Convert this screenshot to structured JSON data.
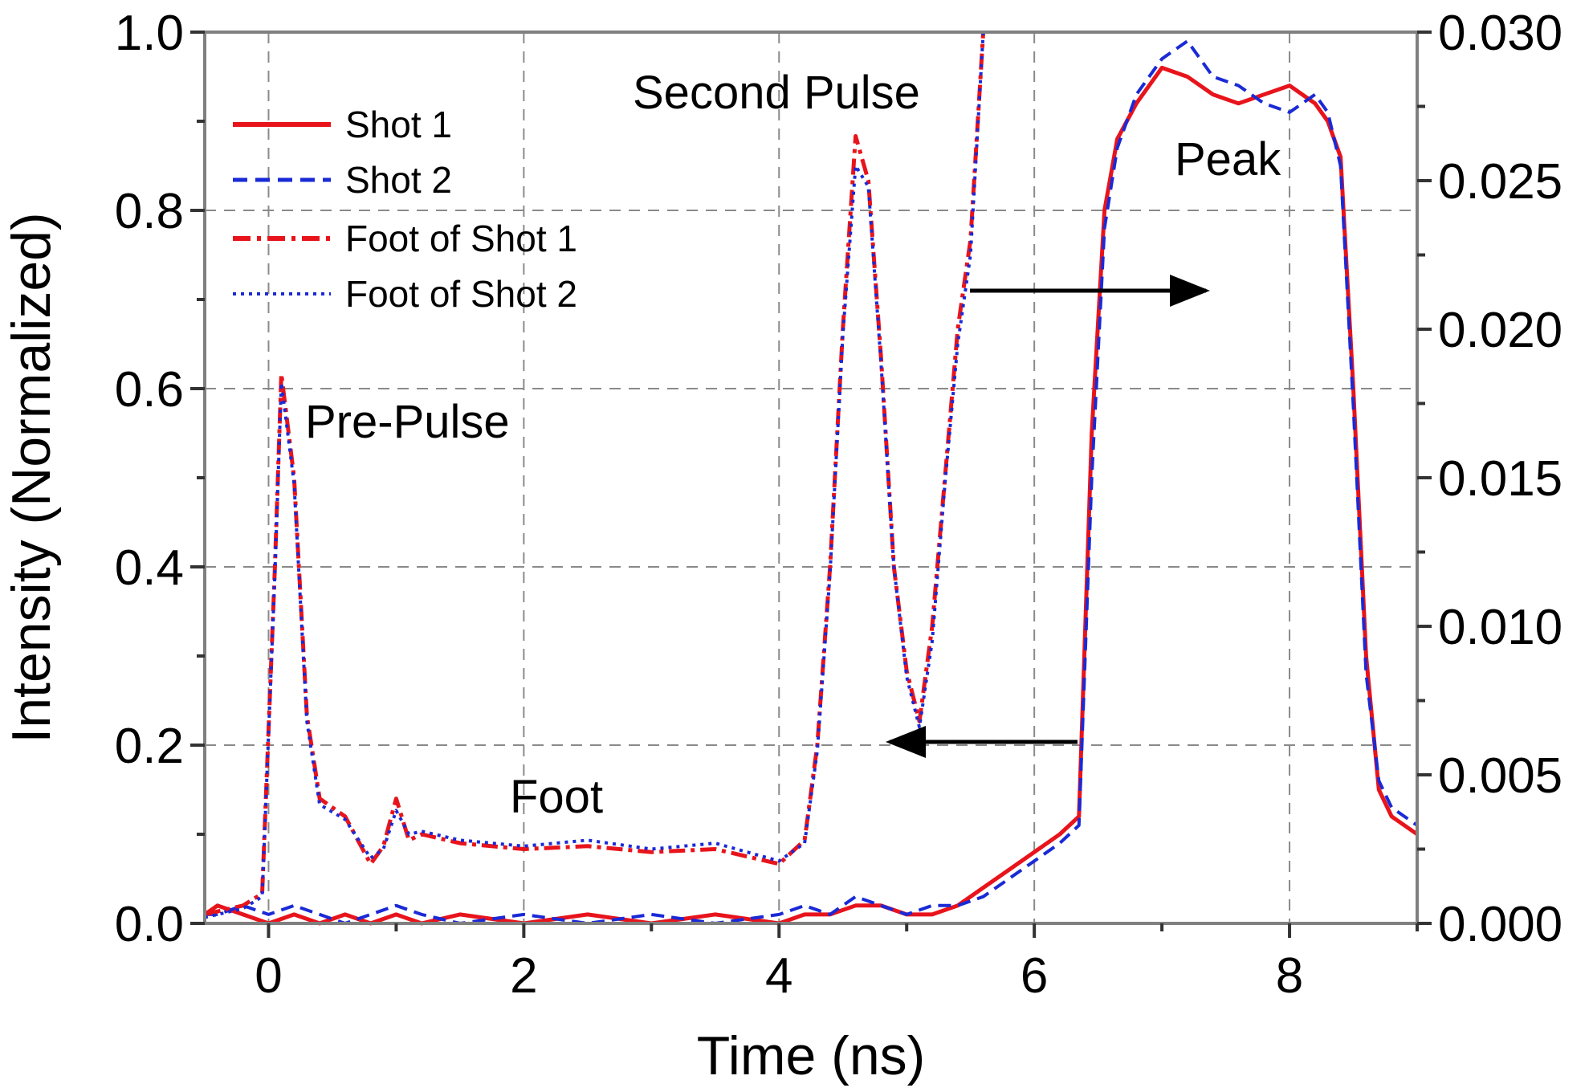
{
  "chart_data": {
    "type": "line",
    "xlabel": "Time (ns)",
    "ylabel": "Intensity (Normalized)",
    "xlim": [
      -0.5,
      9.0
    ],
    "ylim": [
      0.0,
      1.0
    ],
    "y2lim": [
      0.0,
      0.03
    ],
    "x_ticks": [
      0,
      2,
      4,
      6,
      8
    ],
    "y_ticks": [
      0.0,
      0.2,
      0.4,
      0.6,
      0.8,
      1.0
    ],
    "y2_ticks": [
      0.0,
      0.005,
      0.01,
      0.015,
      0.02,
      0.025,
      0.03
    ],
    "x_tick_labels": [
      "0",
      "2",
      "4",
      "6",
      "8"
    ],
    "y_tick_labels": [
      "0.0",
      "0.2",
      "0.4",
      "0.6",
      "0.8",
      "1.0"
    ],
    "y2_tick_labels": [
      "0.000",
      "0.005",
      "0.010",
      "0.015",
      "0.020",
      "0.025",
      "0.030"
    ],
    "grid": true,
    "legend_position": "top-left",
    "annotations": {
      "pre_pulse": "Pre-Pulse",
      "second_pulse": "Second Pulse",
      "peak": "Peak",
      "foot": "Foot"
    },
    "series": [
      {
        "name": "Shot 1",
        "axis": "left",
        "style": "solid",
        "color": "#e8141c",
        "x": [
          -0.5,
          -0.4,
          -0.2,
          0,
          0.2,
          0.4,
          0.6,
          0.8,
          1.0,
          1.2,
          1.5,
          2.0,
          2.5,
          3.0,
          3.5,
          4.0,
          4.2,
          4.4,
          4.6,
          4.8,
          5.0,
          5.2,
          5.4,
          5.6,
          5.8,
          6.0,
          6.2,
          6.35,
          6.45,
          6.55,
          6.65,
          6.8,
          7.0,
          7.2,
          7.4,
          7.6,
          7.8,
          8.0,
          8.1,
          8.2,
          8.3,
          8.4,
          8.5,
          8.6,
          8.7,
          8.8,
          9.0
        ],
        "y": [
          0.01,
          0.02,
          0.01,
          0.0,
          0.01,
          0.0,
          0.01,
          0.0,
          0.01,
          0.0,
          0.01,
          0.0,
          0.01,
          0.0,
          0.01,
          0.0,
          0.01,
          0.01,
          0.02,
          0.02,
          0.01,
          0.01,
          0.02,
          0.04,
          0.06,
          0.08,
          0.1,
          0.12,
          0.55,
          0.8,
          0.88,
          0.92,
          0.96,
          0.95,
          0.93,
          0.92,
          0.93,
          0.94,
          0.93,
          0.92,
          0.9,
          0.86,
          0.6,
          0.3,
          0.15,
          0.12,
          0.1
        ]
      },
      {
        "name": "Shot 2",
        "axis": "left",
        "style": "dashed",
        "color": "#1a2ad6",
        "x": [
          -0.5,
          -0.4,
          -0.2,
          0,
          0.2,
          0.4,
          0.6,
          0.8,
          1.0,
          1.2,
          1.5,
          2.0,
          2.5,
          3.0,
          3.5,
          4.0,
          4.2,
          4.4,
          4.6,
          4.8,
          5.0,
          5.2,
          5.4,
          5.6,
          5.8,
          6.0,
          6.2,
          6.35,
          6.45,
          6.55,
          6.65,
          6.8,
          7.0,
          7.2,
          7.4,
          7.6,
          7.8,
          8.0,
          8.1,
          8.2,
          8.3,
          8.4,
          8.5,
          8.6,
          8.7,
          8.8,
          9.0
        ],
        "y": [
          0.01,
          0.01,
          0.02,
          0.01,
          0.02,
          0.01,
          0.0,
          0.01,
          0.02,
          0.01,
          0.0,
          0.01,
          0.0,
          0.01,
          0.0,
          0.01,
          0.02,
          0.01,
          0.03,
          0.02,
          0.01,
          0.02,
          0.02,
          0.03,
          0.05,
          0.07,
          0.09,
          0.11,
          0.5,
          0.78,
          0.87,
          0.93,
          0.97,
          0.99,
          0.95,
          0.94,
          0.92,
          0.91,
          0.92,
          0.93,
          0.91,
          0.85,
          0.58,
          0.28,
          0.16,
          0.13,
          0.11
        ]
      },
      {
        "name": "Foot of Shot 1",
        "axis": "right",
        "style": "dashdot",
        "color": "#e8141c",
        "x": [
          -0.5,
          -0.2,
          -0.05,
          0.05,
          0.1,
          0.2,
          0.3,
          0.4,
          0.6,
          0.8,
          0.9,
          1.0,
          1.1,
          1.2,
          1.5,
          2.0,
          2.5,
          3.0,
          3.5,
          4.0,
          4.2,
          4.3,
          4.4,
          4.5,
          4.6,
          4.7,
          4.8,
          4.9,
          5.0,
          5.1,
          5.2,
          5.3,
          5.4,
          5.5,
          5.6
        ],
        "y": [
          0.0003,
          0.0006,
          0.001,
          0.012,
          0.0185,
          0.015,
          0.007,
          0.0042,
          0.0036,
          0.002,
          0.0026,
          0.0042,
          0.0028,
          0.003,
          0.0027,
          0.0025,
          0.0026,
          0.0024,
          0.0025,
          0.002,
          0.0028,
          0.006,
          0.012,
          0.02,
          0.0265,
          0.025,
          0.019,
          0.012,
          0.0085,
          0.0068,
          0.01,
          0.015,
          0.02,
          0.023,
          0.03
        ]
      },
      {
        "name": "Foot of Shot 2",
        "axis": "right",
        "style": "dotted",
        "color": "#1a2ad6",
        "x": [
          -0.5,
          -0.2,
          -0.05,
          0.05,
          0.1,
          0.2,
          0.3,
          0.4,
          0.6,
          0.8,
          0.9,
          1.0,
          1.1,
          1.2,
          1.5,
          2.0,
          2.5,
          3.0,
          3.5,
          4.0,
          4.2,
          4.3,
          4.4,
          4.5,
          4.6,
          4.7,
          4.8,
          4.9,
          5.0,
          5.1,
          5.2,
          5.3,
          5.4,
          5.5,
          5.6
        ],
        "y": [
          0.0002,
          0.0005,
          0.0009,
          0.0118,
          0.0182,
          0.0148,
          0.0068,
          0.004,
          0.0035,
          0.0022,
          0.0025,
          0.0038,
          0.003,
          0.0031,
          0.0028,
          0.0026,
          0.0028,
          0.0025,
          0.0027,
          0.0021,
          0.0027,
          0.0058,
          0.0118,
          0.0198,
          0.0255,
          0.0248,
          0.0188,
          0.012,
          0.0083,
          0.0066,
          0.0095,
          0.0148,
          0.0195,
          0.0225,
          0.03
        ]
      }
    ]
  }
}
